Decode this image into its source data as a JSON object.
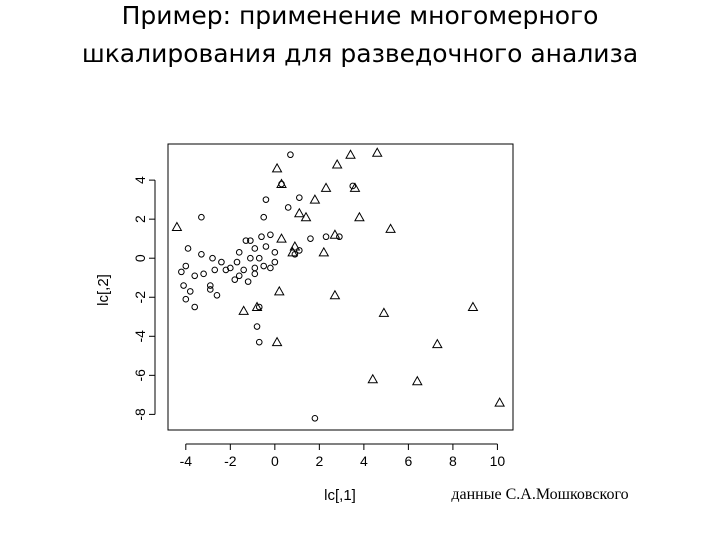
{
  "chart_data": {
    "type": "scatter",
    "title_lines": [
      "Пример: применение многомерного",
      "шкалирования для разведочного анализа"
    ],
    "x_label": "lc[,1]",
    "y_label": "lc[,2]",
    "note": "данные   С.А.Мошковского",
    "xlim": [
      -4.8,
      10.7
    ],
    "ylim": [
      -8.8,
      5.85
    ],
    "xticks": [
      -4,
      -2,
      0,
      2,
      4,
      6,
      8,
      10
    ],
    "yticks": [
      -8,
      -6,
      -4,
      -2,
      0,
      2,
      4
    ],
    "series": [
      {
        "marker": "circle",
        "color": "#000000",
        "x": [
          0.7,
          -3.3,
          -0.4,
          0.3,
          1.1,
          0.6,
          -0.5,
          -1.3,
          -1.1,
          -0.6,
          -0.4,
          -0.2,
          0.0,
          -0.9,
          -1.6,
          -1.7,
          -1.1,
          -0.7,
          -0.5,
          -0.2,
          0.0,
          -3.9,
          -3.3,
          -2.8,
          -2.4,
          -2.0,
          -1.4,
          -0.9,
          -4.0,
          -4.2,
          -3.6,
          -3.2,
          -2.7,
          -2.2,
          -1.6,
          -0.9,
          -4.1,
          -3.8,
          -4.0,
          -3.6,
          -2.9,
          -2.6,
          -2.9,
          -1.8,
          -1.2,
          -0.7,
          -0.8,
          -0.7,
          0.9,
          1.1,
          1.6,
          2.3,
          2.9,
          3.5,
          1.8
        ],
        "values": [
          5.3,
          2.1,
          3.0,
          3.8,
          3.1,
          2.6,
          2.1,
          0.9,
          0.9,
          1.1,
          0.6,
          1.2,
          0.3,
          0.5,
          0.3,
          -0.2,
          0.0,
          0.0,
          -0.4,
          -0.5,
          -0.2,
          0.5,
          0.2,
          0.0,
          -0.2,
          -0.5,
          -0.6,
          -0.5,
          -0.4,
          -0.7,
          -0.9,
          -0.8,
          -0.6,
          -0.6,
          -0.9,
          -0.8,
          -1.4,
          -1.7,
          -2.1,
          -2.5,
          -1.4,
          -1.9,
          -1.6,
          -1.1,
          -1.2,
          -2.5,
          -3.5,
          -4.3,
          0.2,
          0.4,
          1.0,
          1.1,
          1.1,
          3.7,
          -8.2
        ]
      },
      {
        "marker": "triangle",
        "color": "#000000",
        "x": [
          0.1,
          0.3,
          2.8,
          3.4,
          4.6,
          3.6,
          2.3,
          1.8,
          1.1,
          0.3,
          0.9,
          0.8,
          2.2,
          2.7,
          3.8,
          5.2,
          0.2,
          2.7,
          4.9,
          8.9,
          7.3,
          4.4,
          6.4,
          0.1,
          10.1,
          -4.4,
          1.4,
          -0.8,
          -1.4
        ],
        "values": [
          4.6,
          3.8,
          4.8,
          5.3,
          5.4,
          3.6,
          3.6,
          3.0,
          2.3,
          1.0,
          0.6,
          0.3,
          0.3,
          1.2,
          2.1,
          1.5,
          -1.7,
          -1.9,
          -2.8,
          -2.5,
          -4.4,
          -6.2,
          -6.3,
          -4.3,
          -7.4,
          1.6,
          2.1,
          -2.5,
          -2.7
        ]
      }
    ]
  }
}
